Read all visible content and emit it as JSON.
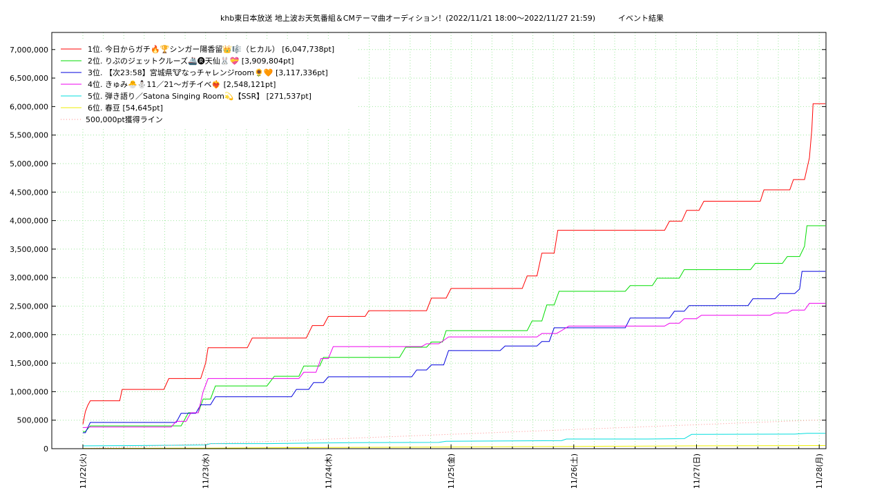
{
  "chart_data": {
    "type": "line",
    "title": "khb東日本放送 地上波お天気番組＆CMテーマ曲オーディション！(2022/11/21 18:00〜2022/11/27 21:59)　　　イベント結果",
    "xlabel": "",
    "ylabel": "",
    "ylim": [
      0,
      7300000
    ],
    "xlim": [
      0,
      6.05
    ],
    "grid": true,
    "legend_position": "top-left",
    "x_tick_labels": [
      "11/22(火)",
      "11/23(水)",
      "11/24(木)",
      "11/25(金)",
      "11/26(土)",
      "11/27(日)",
      "11/28(月)"
    ],
    "y_ticks": [
      0,
      500000,
      1000000,
      1500000,
      2000000,
      2500000,
      3000000,
      3500000,
      4000000,
      4500000,
      5000000,
      5500000,
      6000000,
      6500000,
      7000000
    ],
    "y_tick_labels": [
      "0",
      "500,000",
      "1,000,000",
      "1,500,000",
      "2,000,000",
      "2,500,000",
      "3,000,000",
      "3,500,000",
      "4,000,000",
      "4,500,000",
      "5,000,000",
      "5,500,000",
      "6,000,000",
      "6,500,000",
      "7,000,000"
    ],
    "series": [
      {
        "name": "1位. 今日からガチ🔥🏆シンガー陽香留👑🎼（ヒカル） [6,047,738pt]",
        "color": "#ff0000",
        "points": [
          [
            0,
            430000
          ],
          [
            0.02,
            650000
          ],
          [
            0.04,
            760000
          ],
          [
            0.06,
            840000
          ],
          [
            0.3,
            840000
          ],
          [
            0.32,
            1040000
          ],
          [
            0.66,
            1040000
          ],
          [
            0.7,
            1230000
          ],
          [
            0.96,
            1230000
          ],
          [
            1,
            1500000
          ],
          [
            1.02,
            1770000
          ],
          [
            1.34,
            1770000
          ],
          [
            1.38,
            1940000
          ],
          [
            1.82,
            1940000
          ],
          [
            1.87,
            2160000
          ],
          [
            1.96,
            2160000
          ],
          [
            2,
            2320000
          ],
          [
            2.3,
            2320000
          ],
          [
            2.33,
            2420000
          ],
          [
            2.8,
            2420000
          ],
          [
            2.84,
            2640000
          ],
          [
            2.96,
            2640000
          ],
          [
            3,
            2810000
          ],
          [
            3.58,
            2810000
          ],
          [
            3.62,
            3030000
          ],
          [
            3.7,
            3030000
          ],
          [
            3.74,
            3430000
          ],
          [
            3.84,
            3430000
          ],
          [
            3.87,
            3830000
          ],
          [
            4.74,
            3830000
          ],
          [
            4.78,
            3990000
          ],
          [
            4.88,
            3990000
          ],
          [
            4.92,
            4180000
          ],
          [
            5.02,
            4180000
          ],
          [
            5.06,
            4340000
          ],
          [
            5.52,
            4340000
          ],
          [
            5.55,
            4540000
          ],
          [
            5.76,
            4540000
          ],
          [
            5.79,
            4720000
          ],
          [
            5.88,
            4720000
          ],
          [
            5.92,
            5100000
          ],
          [
            5.94,
            5600000
          ],
          [
            5.95,
            6050000
          ],
          [
            6.05,
            6050000
          ]
        ]
      },
      {
        "name": "2位. りぷのジェットクルーズ🚢🅡天仙🐰💝 [3,909,804pt]",
        "color": "#00dd00",
        "points": [
          [
            0,
            300000
          ],
          [
            0.02,
            300000
          ],
          [
            0.06,
            400000
          ],
          [
            0.8,
            400000
          ],
          [
            0.86,
            630000
          ],
          [
            0.94,
            630000
          ],
          [
            0.98,
            870000
          ],
          [
            1.04,
            870000
          ],
          [
            1.08,
            1100000
          ],
          [
            1.5,
            1100000
          ],
          [
            1.56,
            1270000
          ],
          [
            1.76,
            1270000
          ],
          [
            1.8,
            1450000
          ],
          [
            1.93,
            1450000
          ],
          [
            1.96,
            1600000
          ],
          [
            2.58,
            1600000
          ],
          [
            2.63,
            1780000
          ],
          [
            2.8,
            1780000
          ],
          [
            2.84,
            1870000
          ],
          [
            2.93,
            1870000
          ],
          [
            2.96,
            2070000
          ],
          [
            3.62,
            2070000
          ],
          [
            3.66,
            2240000
          ],
          [
            3.74,
            2240000
          ],
          [
            3.78,
            2520000
          ],
          [
            3.84,
            2520000
          ],
          [
            3.88,
            2760000
          ],
          [
            4.42,
            2760000
          ],
          [
            4.46,
            2860000
          ],
          [
            4.64,
            2860000
          ],
          [
            4.68,
            2990000
          ],
          [
            4.86,
            2990000
          ],
          [
            4.9,
            3140000
          ],
          [
            5.44,
            3140000
          ],
          [
            5.48,
            3250000
          ],
          [
            5.7,
            3250000
          ],
          [
            5.74,
            3370000
          ],
          [
            5.84,
            3370000
          ],
          [
            5.88,
            3550000
          ],
          [
            5.9,
            3910000
          ],
          [
            6.05,
            3910000
          ]
        ]
      },
      {
        "name": "3位. 【次23:58】宮城県🐮なっチャレンジroom🌻🧡 [3,117,336pt]",
        "color": "#0000dd",
        "points": [
          [
            0,
            280000
          ],
          [
            0.02,
            280000
          ],
          [
            0.06,
            460000
          ],
          [
            0.76,
            460000
          ],
          [
            0.8,
            620000
          ],
          [
            0.92,
            620000
          ],
          [
            0.96,
            770000
          ],
          [
            1.04,
            770000
          ],
          [
            1.08,
            910000
          ],
          [
            1.7,
            910000
          ],
          [
            1.74,
            1040000
          ],
          [
            1.84,
            1040000
          ],
          [
            1.88,
            1160000
          ],
          [
            1.96,
            1160000
          ],
          [
            2,
            1260000
          ],
          [
            2.68,
            1260000
          ],
          [
            2.72,
            1380000
          ],
          [
            2.8,
            1380000
          ],
          [
            2.84,
            1470000
          ],
          [
            2.94,
            1470000
          ],
          [
            2.98,
            1720000
          ],
          [
            3.4,
            1720000
          ],
          [
            3.44,
            1800000
          ],
          [
            3.7,
            1800000
          ],
          [
            3.74,
            1880000
          ],
          [
            3.8,
            1880000
          ],
          [
            3.84,
            2120000
          ],
          [
            4.42,
            2120000
          ],
          [
            4.46,
            2290000
          ],
          [
            4.78,
            2290000
          ],
          [
            4.82,
            2410000
          ],
          [
            4.9,
            2410000
          ],
          [
            4.94,
            2510000
          ],
          [
            5.42,
            2510000
          ],
          [
            5.46,
            2630000
          ],
          [
            5.64,
            2630000
          ],
          [
            5.68,
            2720000
          ],
          [
            5.8,
            2720000
          ],
          [
            5.84,
            2800000
          ],
          [
            5.86,
            3110000
          ],
          [
            6.05,
            3110000
          ]
        ]
      },
      {
        "name": "4位. きゅみ🐣⛄11／21〜ガチイベ❤️‍🔥 [2,548,121pt]",
        "color": "#ee00ee",
        "points": [
          [
            0,
            370000
          ],
          [
            0.02,
            370000
          ],
          [
            0.06,
            380000
          ],
          [
            0.72,
            380000
          ],
          [
            0.76,
            480000
          ],
          [
            0.84,
            480000
          ],
          [
            0.88,
            630000
          ],
          [
            0.94,
            630000
          ],
          [
            0.98,
            1000000
          ],
          [
            1.02,
            1230000
          ],
          [
            1.76,
            1230000
          ],
          [
            1.8,
            1340000
          ],
          [
            1.9,
            1340000
          ],
          [
            1.94,
            1580000
          ],
          [
            2,
            1580000
          ],
          [
            2.04,
            1790000
          ],
          [
            2.76,
            1790000
          ],
          [
            2.8,
            1840000
          ],
          [
            2.9,
            1840000
          ],
          [
            2.94,
            1900000
          ],
          [
            2.98,
            1960000
          ],
          [
            3.7,
            1960000
          ],
          [
            3.74,
            2020000
          ],
          [
            3.86,
            2020000
          ],
          [
            3.9,
            2070000
          ],
          [
            3.96,
            2150000
          ],
          [
            4.74,
            2150000
          ],
          [
            4.78,
            2200000
          ],
          [
            4.86,
            2200000
          ],
          [
            4.9,
            2280000
          ],
          [
            5.0,
            2280000
          ],
          [
            5.04,
            2340000
          ],
          [
            5.6,
            2340000
          ],
          [
            5.64,
            2380000
          ],
          [
            5.74,
            2380000
          ],
          [
            5.78,
            2430000
          ],
          [
            5.88,
            2430000
          ],
          [
            5.92,
            2550000
          ],
          [
            6.05,
            2550000
          ]
        ]
      },
      {
        "name": "5位. 弾き語り／Satona Singing Room💫【SSR】 [271,537pt]",
        "color": "#00dddd",
        "points": [
          [
            0,
            50000
          ],
          [
            0.4,
            55000
          ],
          [
            1.0,
            65000
          ],
          [
            1.04,
            90000
          ],
          [
            1.5,
            90000
          ],
          [
            1.9,
            100000
          ],
          [
            2.2,
            105000
          ],
          [
            2.9,
            110000
          ],
          [
            2.96,
            130000
          ],
          [
            3.9,
            140000
          ],
          [
            3.94,
            170000
          ],
          [
            4.6,
            170000
          ],
          [
            4.9,
            175000
          ],
          [
            4.96,
            250000
          ],
          [
            5.8,
            255000
          ],
          [
            5.9,
            270000
          ],
          [
            6.05,
            270000
          ]
        ]
      },
      {
        "name": "6位. 春豆 [54,645pt]",
        "color": "#eeee00",
        "points": [
          [
            0,
            5000
          ],
          [
            1.0,
            10000
          ],
          [
            2.0,
            20000
          ],
          [
            3.0,
            30000
          ],
          [
            4.0,
            40000
          ],
          [
            5.0,
            50000
          ],
          [
            6.05,
            55000
          ]
        ]
      },
      {
        "name": "500,000pt獲得ライン",
        "color": "#ff8888",
        "style": "dotted",
        "points": [
          [
            0,
            0
          ],
          [
            5.95,
            500000
          ],
          [
            6.05,
            500000
          ]
        ]
      }
    ]
  }
}
